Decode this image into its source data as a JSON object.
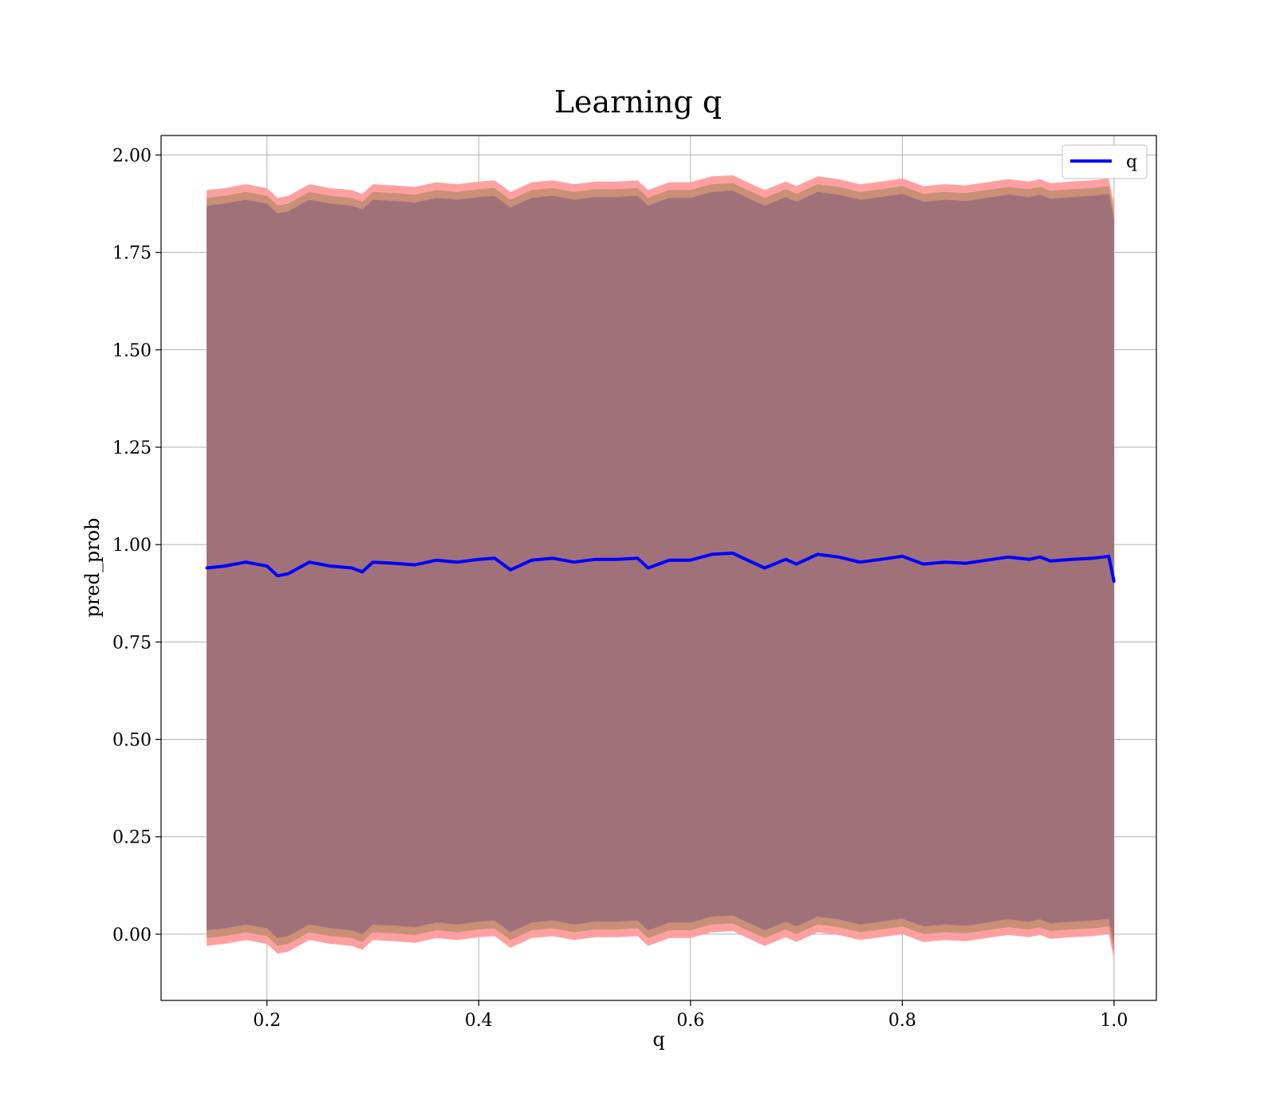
{
  "chart_data": {
    "type": "line",
    "title": "Learning q",
    "xlabel": "q",
    "ylabel": "pred_prob",
    "xlim": [
      0.1,
      1.04
    ],
    "ylim": [
      -0.17,
      2.05
    ],
    "x_ticks": [
      0.2,
      0.4,
      0.6,
      0.8,
      1.0
    ],
    "x_tick_labels": [
      "0.2",
      "0.4",
      "0.6",
      "0.8",
      "1.0"
    ],
    "y_ticks": [
      0.0,
      0.25,
      0.5,
      0.75,
      1.0,
      1.25,
      1.5,
      1.75,
      2.0
    ],
    "y_tick_labels": [
      "0.00",
      "0.25",
      "0.50",
      "0.75",
      "1.00",
      "1.25",
      "1.50",
      "1.75",
      "2.00"
    ],
    "grid": true,
    "legend_position": "top-right",
    "colors": {
      "line": "#0000ff",
      "band_outer": "#ffa0a0",
      "band_middle": "#c98f77",
      "band_inner": "#a1717a",
      "grid": "#b0b0b0"
    },
    "bands": {
      "outer_halfwidth": 0.97,
      "middle_halfwidth": 0.95,
      "inner_halfwidth": 0.93
    },
    "x": [
      0.143,
      0.16,
      0.18,
      0.2,
      0.21,
      0.22,
      0.24,
      0.26,
      0.28,
      0.29,
      0.3,
      0.32,
      0.34,
      0.36,
      0.38,
      0.4,
      0.415,
      0.43,
      0.45,
      0.47,
      0.49,
      0.51,
      0.53,
      0.55,
      0.56,
      0.58,
      0.6,
      0.62,
      0.64,
      0.65,
      0.67,
      0.69,
      0.7,
      0.72,
      0.74,
      0.76,
      0.78,
      0.8,
      0.82,
      0.84,
      0.86,
      0.88,
      0.9,
      0.92,
      0.93,
      0.94,
      0.96,
      0.98,
      0.995,
      1.0
    ],
    "series": [
      {
        "name": "q",
        "values": [
          0.94,
          0.945,
          0.955,
          0.945,
          0.92,
          0.925,
          0.955,
          0.945,
          0.94,
          0.93,
          0.955,
          0.952,
          0.948,
          0.96,
          0.955,
          0.962,
          0.965,
          0.935,
          0.96,
          0.965,
          0.955,
          0.962,
          0.962,
          0.965,
          0.94,
          0.96,
          0.96,
          0.975,
          0.978,
          0.965,
          0.94,
          0.962,
          0.95,
          0.975,
          0.968,
          0.955,
          0.962,
          0.97,
          0.95,
          0.955,
          0.952,
          0.96,
          0.968,
          0.962,
          0.968,
          0.958,
          0.962,
          0.965,
          0.97,
          0.905
        ]
      }
    ]
  }
}
